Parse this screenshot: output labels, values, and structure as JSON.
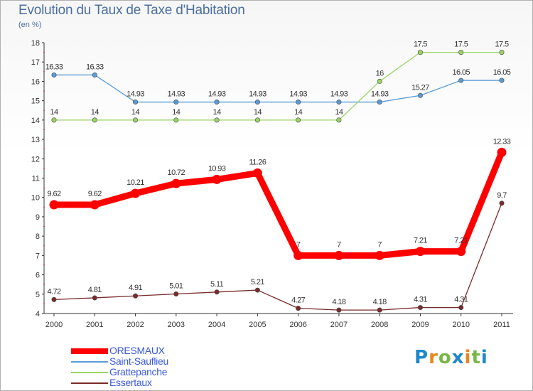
{
  "header": {
    "title": "Evolution du Taux de Taxe d'Habitation",
    "subtitle": "(en %)"
  },
  "logo": {
    "letters": [
      "P",
      "r",
      "o",
      "x",
      "i",
      "t",
      "i"
    ],
    "colors": [
      "#1e88c8",
      "#e8871e",
      "#7ab648",
      "#1e88c8",
      "#e8871e",
      "#7ab648",
      "#1e88c8"
    ]
  },
  "chart_data": {
    "type": "line",
    "title": "Evolution du Taux de Taxe d'Habitation",
    "subtitle": "(en %)",
    "x": [
      "2000",
      "2001",
      "2002",
      "2003",
      "2004",
      "2005",
      "2006",
      "2007",
      "2008",
      "2009",
      "2010",
      "2011"
    ],
    "ylim": [
      4,
      18
    ],
    "yticks": [
      "4",
      "5",
      "6",
      "7",
      "8",
      "9",
      "10",
      "11",
      "12",
      "13",
      "14",
      "15",
      "16",
      "17",
      "18"
    ],
    "grid": false,
    "legend_position": "bottom-left",
    "series": [
      {
        "name": "ORESMAUX",
        "color": "#ff0000",
        "values": [
          9.62,
          9.62,
          10.21,
          10.72,
          10.93,
          11.26,
          7,
          7,
          7,
          7.21,
          7.21,
          12.33
        ],
        "labels": [
          "9.62",
          "9.62",
          "10.21",
          "10.72",
          "10.93",
          "11.26",
          "7",
          "7",
          "7",
          "7.21",
          "7.21",
          "12.33"
        ]
      },
      {
        "name": "Saint-Sauflieu",
        "color": "#5a9bd5",
        "values": [
          16.33,
          16.33,
          14.93,
          14.93,
          14.93,
          14.93,
          14.93,
          14.93,
          14.93,
          15.27,
          16.05,
          16.05
        ],
        "labels": [
          "16.33",
          "16.33",
          "14.93",
          "14.93",
          "14.93",
          "14.93",
          "14.93",
          "14.93",
          "14.93",
          "15.27",
          "16.05",
          "16.05"
        ]
      },
      {
        "name": "Grattepanche",
        "color": "#9bd464",
        "values": [
          14,
          14,
          14,
          14,
          14,
          14,
          14,
          14,
          16,
          17.5,
          17.5,
          17.5
        ],
        "labels": [
          "14",
          "14",
          "14",
          "14",
          "14",
          "14",
          "14",
          "14",
          "16",
          "17.5",
          "17.5",
          "17.5"
        ]
      },
      {
        "name": "Essertaux",
        "color": "#7a2b2b",
        "values": [
          4.72,
          4.81,
          4.91,
          5.01,
          5.11,
          5.21,
          4.27,
          4.18,
          4.18,
          4.31,
          4.31,
          9.7
        ],
        "labels": [
          "4.72",
          "4.81",
          "4.91",
          "5.01",
          "5.11",
          "5.21",
          "4.27",
          "4.18",
          "4.18",
          "4.31",
          "4.31",
          "9.7"
        ]
      }
    ]
  }
}
